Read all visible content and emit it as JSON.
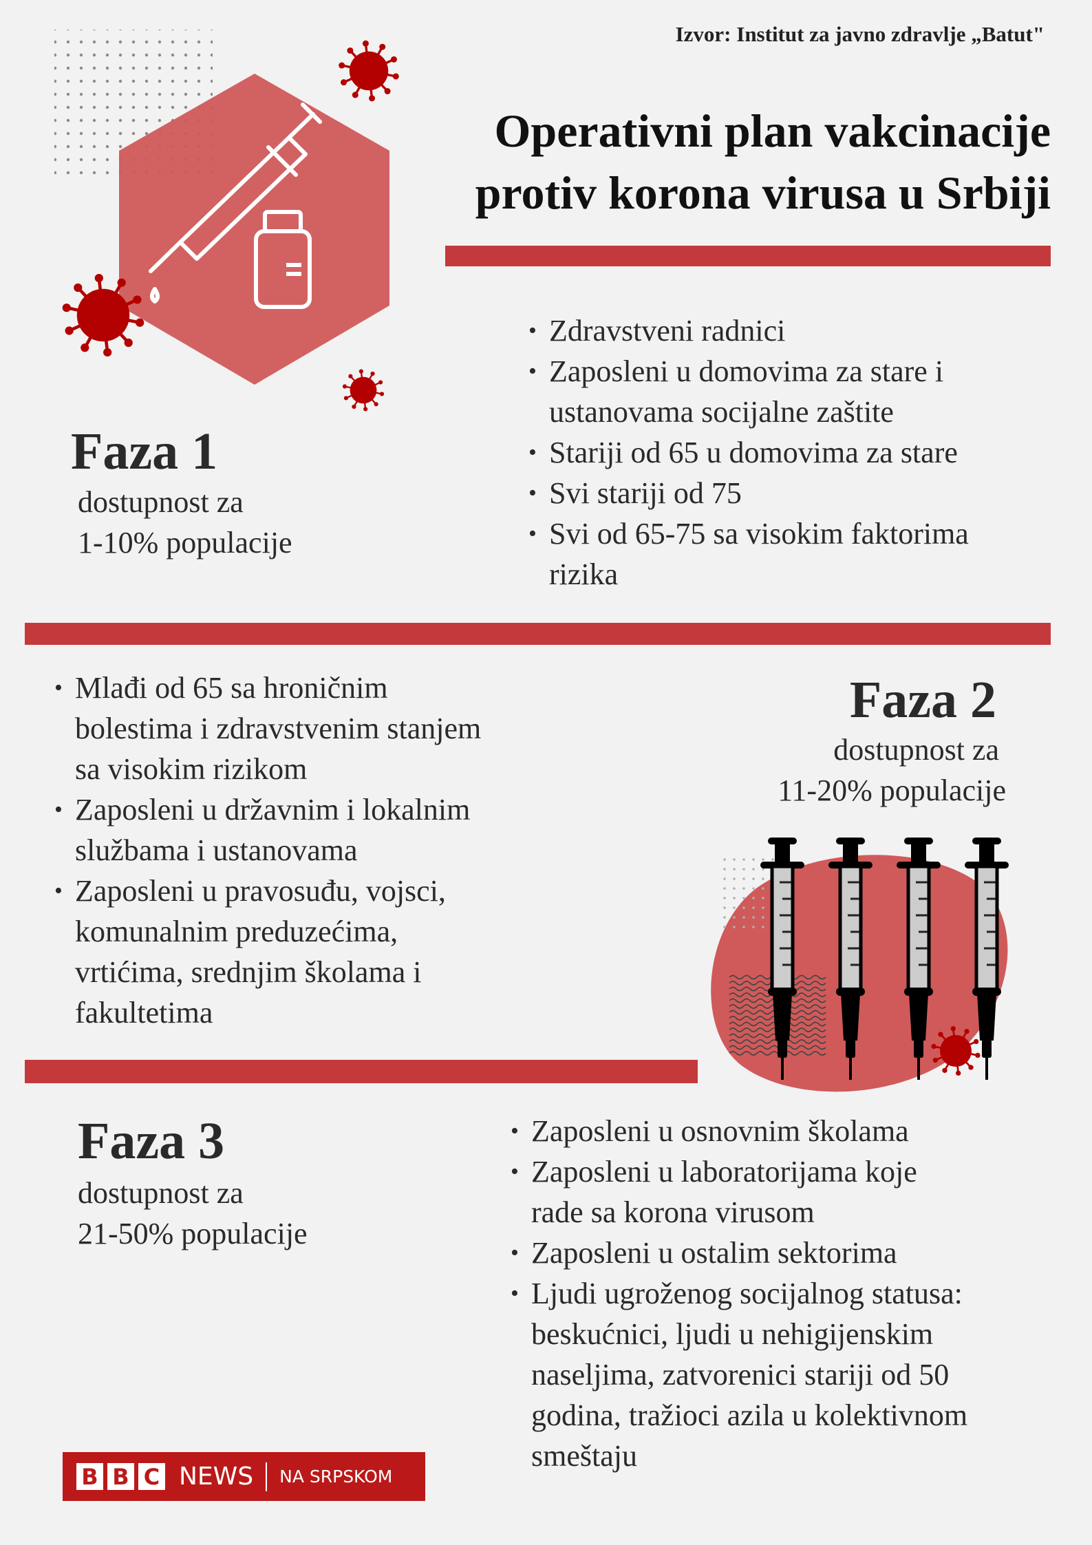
{
  "source": "Izvor: Institut za javno zdravlje „Batut\"",
  "title": [
    "Operativni plan vakcinacije",
    "protiv korona virusa u Srbiji"
  ],
  "colors": {
    "background": "#f2f2f2",
    "bar": "#c4393b",
    "shape": "#d05a5a",
    "virus": "#b30000",
    "brand": "#bb1919"
  },
  "phases": [
    {
      "name": "Faza 1",
      "availability": [
        "dostupnost za",
        "1-10% populacije"
      ],
      "groups": [
        "Zdravstveni radnici",
        "Zaposleni u domovima za stare i\nustanovama socijalne zaštite",
        "Stariji od 65 u domovima za stare",
        "Svi stariji od 75",
        "Svi od 65-75 sa visokim faktorima\nrizika"
      ]
    },
    {
      "name": "Faza 2",
      "availability": [
        "dostupnost za",
        "11-20% populacije"
      ],
      "groups": [
        "Mlađi od 65 sa hroničnim\nbolestima i zdravstvenim stanjem\nsa visokim rizikom",
        "Zaposleni u državnim i lokalnim\nslužbama i ustanovama",
        "Zaposleni u pravosuđu, vojsci,\nkomunalnim preduzećima,\nvrtićima, srednjim školama i\nfakultetima"
      ]
    },
    {
      "name": "Faza 3",
      "availability": [
        "dostupnost za",
        "21-50% populacije"
      ],
      "groups": [
        "Zaposleni u osnovnim školama",
        "Zaposleni u laboratorijama koje\nrade sa korona virusom",
        "Zaposleni u ostalim sektorima",
        "Ljudi ugroženog socijalnog statusa:\nbeskućnici, ljudi u nehigijenskim\nnaseljima, zatvorenici stariji od 50\ngodina, tražioci azila u kolektivnom\nsmeštaju"
      ]
    }
  ],
  "logo": {
    "letters": [
      "B",
      "B",
      "C"
    ],
    "news": "NEWS",
    "language": "NA SRPSKOM"
  },
  "icons": [
    "dot-grid",
    "hexagon",
    "syringe-icon",
    "vial-icon",
    "virus-icon",
    "syringes-illustration"
  ]
}
